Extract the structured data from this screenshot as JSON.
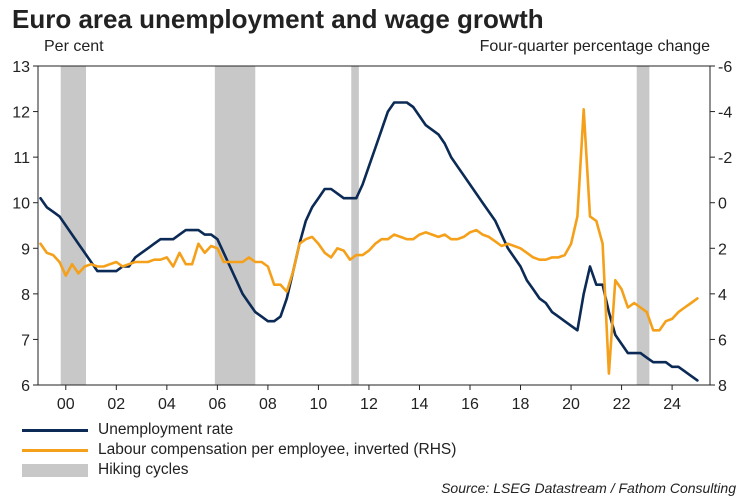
{
  "title": "Euro area unemployment and wage growth",
  "unit_left": "Per cent",
  "unit_right": "Four-quarter percentage change",
  "source": "Source: LSEG Datastream / Fathom Consulting",
  "legend": {
    "unemployment": "Unemployment rate",
    "wages": "Labour compensation per employee, inverted (RHS)",
    "hiking": "Hiking cycles"
  },
  "colors": {
    "unemployment": "#0b2a55",
    "wages": "#f5a01a",
    "hiking": "#c8c8c8"
  },
  "chart_data": {
    "type": "line",
    "x_range": [
      1998.9,
      2025.5
    ],
    "left_axis": {
      "range": [
        6,
        13
      ],
      "ticks": [
        6,
        7,
        8,
        9,
        10,
        11,
        12,
        13
      ]
    },
    "right_axis": {
      "range": [
        8,
        -6
      ],
      "inverted": true,
      "ticks": [
        8,
        6,
        4,
        2,
        0,
        -2,
        -4,
        -6
      ]
    },
    "x_ticks": [
      {
        "value": 2000,
        "label": "00"
      },
      {
        "value": 2002,
        "label": "02"
      },
      {
        "value": 2004,
        "label": "04"
      },
      {
        "value": 2006,
        "label": "06"
      },
      {
        "value": 2008,
        "label": "08"
      },
      {
        "value": 2010,
        "label": "10"
      },
      {
        "value": 2012,
        "label": "12"
      },
      {
        "value": 2014,
        "label": "14"
      },
      {
        "value": 2016,
        "label": "16"
      },
      {
        "value": 2018,
        "label": "18"
      },
      {
        "value": 2020,
        "label": "20"
      },
      {
        "value": 2022,
        "label": "22"
      },
      {
        "value": 2024,
        "label": "24"
      }
    ],
    "hiking_cycles": [
      [
        1999.8,
        2000.8
      ],
      [
        2005.9,
        2007.5
      ],
      [
        2011.3,
        2011.6
      ],
      [
        2022.6,
        2023.1
      ]
    ],
    "series": [
      {
        "name": "Unemployment rate",
        "axis": "left",
        "points": [
          [
            1999.0,
            10.1
          ],
          [
            1999.25,
            9.9
          ],
          [
            1999.5,
            9.8
          ],
          [
            1999.75,
            9.7
          ],
          [
            2000.0,
            9.5
          ],
          [
            2000.25,
            9.3
          ],
          [
            2000.5,
            9.1
          ],
          [
            2000.75,
            8.9
          ],
          [
            2001.0,
            8.7
          ],
          [
            2001.25,
            8.5
          ],
          [
            2001.5,
            8.5
          ],
          [
            2001.75,
            8.5
          ],
          [
            2002.0,
            8.5
          ],
          [
            2002.25,
            8.6
          ],
          [
            2002.5,
            8.6
          ],
          [
            2002.75,
            8.8
          ],
          [
            2003.0,
            8.9
          ],
          [
            2003.25,
            9.0
          ],
          [
            2003.5,
            9.1
          ],
          [
            2003.75,
            9.2
          ],
          [
            2004.0,
            9.2
          ],
          [
            2004.25,
            9.2
          ],
          [
            2004.5,
            9.3
          ],
          [
            2004.75,
            9.4
          ],
          [
            2005.0,
            9.4
          ],
          [
            2005.25,
            9.4
          ],
          [
            2005.5,
            9.3
          ],
          [
            2005.75,
            9.3
          ],
          [
            2006.0,
            9.2
          ],
          [
            2006.25,
            8.9
          ],
          [
            2006.5,
            8.6
          ],
          [
            2006.75,
            8.3
          ],
          [
            2007.0,
            8.0
          ],
          [
            2007.25,
            7.8
          ],
          [
            2007.5,
            7.6
          ],
          [
            2007.75,
            7.5
          ],
          [
            2008.0,
            7.4
          ],
          [
            2008.25,
            7.4
          ],
          [
            2008.5,
            7.5
          ],
          [
            2008.75,
            7.9
          ],
          [
            2009.0,
            8.5
          ],
          [
            2009.25,
            9.1
          ],
          [
            2009.5,
            9.6
          ],
          [
            2009.75,
            9.9
          ],
          [
            2010.0,
            10.1
          ],
          [
            2010.25,
            10.3
          ],
          [
            2010.5,
            10.3
          ],
          [
            2010.75,
            10.2
          ],
          [
            2011.0,
            10.1
          ],
          [
            2011.25,
            10.1
          ],
          [
            2011.5,
            10.1
          ],
          [
            2011.75,
            10.4
          ],
          [
            2012.0,
            10.8
          ],
          [
            2012.25,
            11.2
          ],
          [
            2012.5,
            11.6
          ],
          [
            2012.75,
            12.0
          ],
          [
            2013.0,
            12.2
          ],
          [
            2013.25,
            12.2
          ],
          [
            2013.5,
            12.2
          ],
          [
            2013.75,
            12.1
          ],
          [
            2014.0,
            11.9
          ],
          [
            2014.25,
            11.7
          ],
          [
            2014.5,
            11.6
          ],
          [
            2014.75,
            11.5
          ],
          [
            2015.0,
            11.3
          ],
          [
            2015.25,
            11.0
          ],
          [
            2015.5,
            10.8
          ],
          [
            2015.75,
            10.6
          ],
          [
            2016.0,
            10.4
          ],
          [
            2016.25,
            10.2
          ],
          [
            2016.5,
            10.0
          ],
          [
            2016.75,
            9.8
          ],
          [
            2017.0,
            9.6
          ],
          [
            2017.25,
            9.3
          ],
          [
            2017.5,
            9.0
          ],
          [
            2017.75,
            8.8
          ],
          [
            2018.0,
            8.6
          ],
          [
            2018.25,
            8.3
          ],
          [
            2018.5,
            8.1
          ],
          [
            2018.75,
            7.9
          ],
          [
            2019.0,
            7.8
          ],
          [
            2019.25,
            7.6
          ],
          [
            2019.5,
            7.5
          ],
          [
            2019.75,
            7.4
          ],
          [
            2020.0,
            7.3
          ],
          [
            2020.25,
            7.2
          ],
          [
            2020.5,
            8.0
          ],
          [
            2020.75,
            8.6
          ],
          [
            2021.0,
            8.2
          ],
          [
            2021.25,
            8.2
          ],
          [
            2021.5,
            7.6
          ],
          [
            2021.75,
            7.1
          ],
          [
            2022.0,
            6.9
          ],
          [
            2022.25,
            6.7
          ],
          [
            2022.5,
            6.7
          ],
          [
            2022.75,
            6.7
          ],
          [
            2023.0,
            6.6
          ],
          [
            2023.25,
            6.5
          ],
          [
            2023.5,
            6.5
          ],
          [
            2023.75,
            6.5
          ],
          [
            2024.0,
            6.4
          ],
          [
            2024.25,
            6.4
          ],
          [
            2024.5,
            6.3
          ],
          [
            2024.75,
            6.2
          ],
          [
            2025.0,
            6.1
          ]
        ]
      },
      {
        "name": "Labour compensation per employee, inverted (RHS)",
        "axis": "right",
        "points": [
          [
            1999.0,
            1.8
          ],
          [
            1999.25,
            2.2
          ],
          [
            1999.5,
            2.3
          ],
          [
            1999.75,
            2.6
          ],
          [
            2000.0,
            3.2
          ],
          [
            2000.25,
            2.7
          ],
          [
            2000.5,
            3.1
          ],
          [
            2000.75,
            2.8
          ],
          [
            2001.0,
            2.7
          ],
          [
            2001.25,
            2.8
          ],
          [
            2001.5,
            2.8
          ],
          [
            2001.75,
            2.7
          ],
          [
            2002.0,
            2.6
          ],
          [
            2002.25,
            2.8
          ],
          [
            2002.5,
            2.7
          ],
          [
            2002.75,
            2.6
          ],
          [
            2003.0,
            2.6
          ],
          [
            2003.25,
            2.6
          ],
          [
            2003.5,
            2.5
          ],
          [
            2003.75,
            2.5
          ],
          [
            2004.0,
            2.4
          ],
          [
            2004.25,
            2.8
          ],
          [
            2004.5,
            2.2
          ],
          [
            2004.75,
            2.7
          ],
          [
            2005.0,
            2.7
          ],
          [
            2005.25,
            1.8
          ],
          [
            2005.5,
            2.2
          ],
          [
            2005.75,
            1.9
          ],
          [
            2006.0,
            2.0
          ],
          [
            2006.25,
            2.6
          ],
          [
            2006.5,
            2.6
          ],
          [
            2006.75,
            2.6
          ],
          [
            2007.0,
            2.6
          ],
          [
            2007.25,
            2.4
          ],
          [
            2007.5,
            2.6
          ],
          [
            2007.75,
            2.6
          ],
          [
            2008.0,
            2.8
          ],
          [
            2008.25,
            3.6
          ],
          [
            2008.5,
            3.6
          ],
          [
            2008.75,
            3.9
          ],
          [
            2009.0,
            3.0
          ],
          [
            2009.25,
            1.8
          ],
          [
            2009.5,
            1.6
          ],
          [
            2009.75,
            1.5
          ],
          [
            2010.0,
            1.8
          ],
          [
            2010.25,
            2.2
          ],
          [
            2010.5,
            2.4
          ],
          [
            2010.75,
            2.0
          ],
          [
            2011.0,
            2.1
          ],
          [
            2011.25,
            2.5
          ],
          [
            2011.5,
            2.3
          ],
          [
            2011.75,
            2.3
          ],
          [
            2012.0,
            2.1
          ],
          [
            2012.25,
            1.8
          ],
          [
            2012.5,
            1.6
          ],
          [
            2012.75,
            1.6
          ],
          [
            2013.0,
            1.4
          ],
          [
            2013.25,
            1.5
          ],
          [
            2013.5,
            1.6
          ],
          [
            2013.75,
            1.6
          ],
          [
            2014.0,
            1.4
          ],
          [
            2014.25,
            1.3
          ],
          [
            2014.5,
            1.4
          ],
          [
            2014.75,
            1.5
          ],
          [
            2015.0,
            1.4
          ],
          [
            2015.25,
            1.6
          ],
          [
            2015.5,
            1.6
          ],
          [
            2015.75,
            1.5
          ],
          [
            2016.0,
            1.3
          ],
          [
            2016.25,
            1.2
          ],
          [
            2016.5,
            1.4
          ],
          [
            2016.75,
            1.5
          ],
          [
            2017.0,
            1.7
          ],
          [
            2017.25,
            1.9
          ],
          [
            2017.5,
            1.8
          ],
          [
            2017.75,
            1.9
          ],
          [
            2018.0,
            2.0
          ],
          [
            2018.25,
            2.2
          ],
          [
            2018.5,
            2.4
          ],
          [
            2018.75,
            2.5
          ],
          [
            2019.0,
            2.5
          ],
          [
            2019.25,
            2.4
          ],
          [
            2019.5,
            2.4
          ],
          [
            2019.75,
            2.3
          ],
          [
            2020.0,
            1.8
          ],
          [
            2020.25,
            0.6
          ],
          [
            2020.5,
            -4.1
          ],
          [
            2020.75,
            0.6
          ],
          [
            2021.0,
            0.8
          ],
          [
            2021.25,
            1.8
          ],
          [
            2021.5,
            7.5
          ],
          [
            2021.75,
            3.4
          ],
          [
            2022.0,
            3.8
          ],
          [
            2022.25,
            4.6
          ],
          [
            2022.5,
            4.4
          ],
          [
            2022.75,
            4.6
          ],
          [
            2023.0,
            4.8
          ],
          [
            2023.25,
            5.6
          ],
          [
            2023.5,
            5.6
          ],
          [
            2023.75,
            5.2
          ],
          [
            2024.0,
            5.1
          ],
          [
            2024.25,
            4.8
          ],
          [
            2024.5,
            4.6
          ],
          [
            2024.75,
            4.4
          ],
          [
            2025.0,
            4.2
          ]
        ]
      }
    ]
  }
}
